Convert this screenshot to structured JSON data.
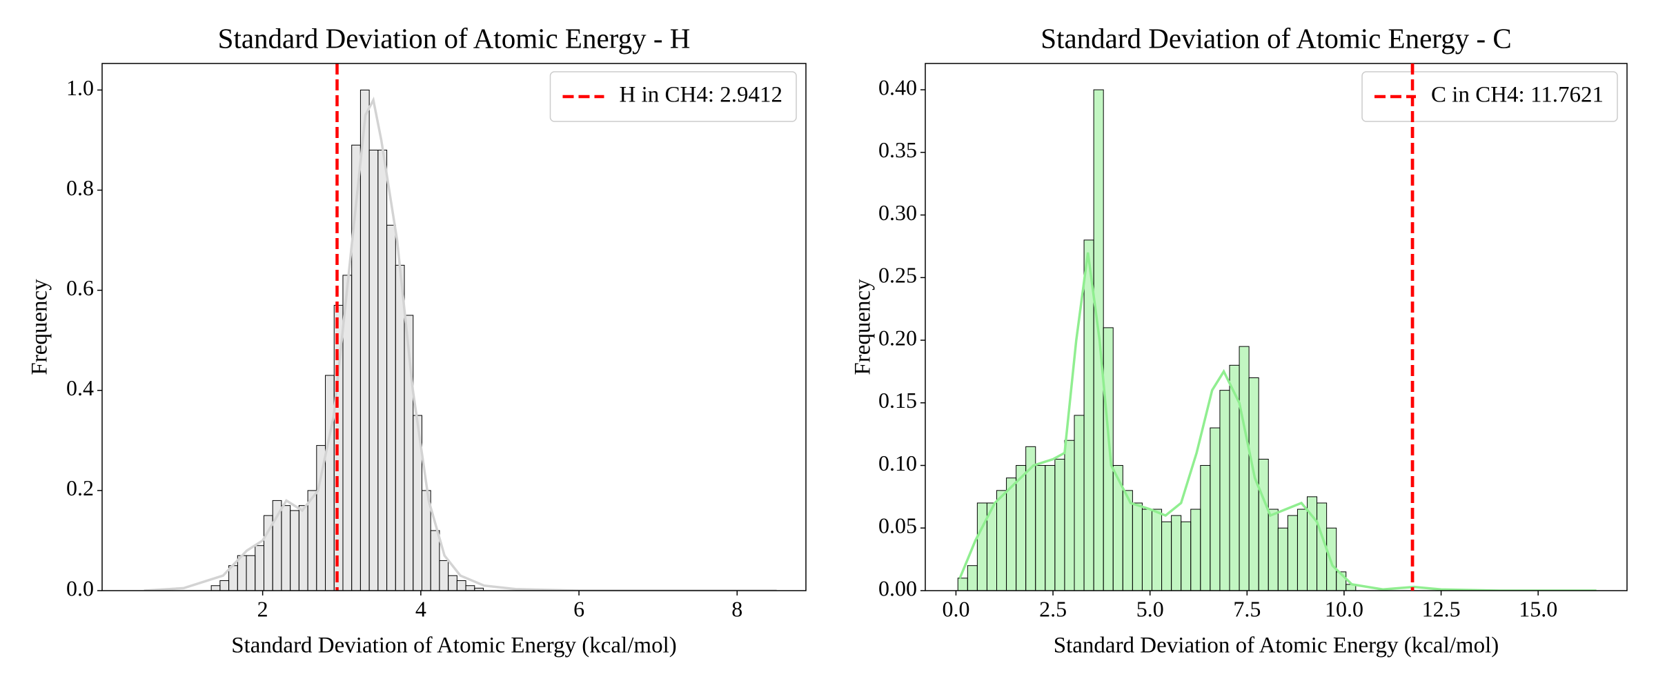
{
  "chart_data": [
    {
      "type": "histogram",
      "title": "Standard Deviation of Atomic Energy - H",
      "xlabel": "Standard Deviation of Atomic Energy (kcal/mol)",
      "ylabel": "Frequency",
      "bins": [
        1.35,
        1.461,
        1.572,
        1.683,
        1.794,
        1.905,
        2.016,
        2.127,
        2.238,
        2.349,
        2.46,
        2.571,
        2.682,
        2.793,
        2.904,
        3.015,
        3.126,
        3.237,
        3.348,
        3.459,
        3.57,
        3.681,
        3.792,
        3.903,
        4.014,
        4.125,
        4.236,
        4.347,
        4.458,
        4.569,
        4.68,
        4.791
      ],
      "values": [
        0.01,
        0.02,
        0.05,
        0.07,
        0.07,
        0.09,
        0.15,
        0.18,
        0.17,
        0.16,
        0.17,
        0.2,
        0.29,
        0.43,
        0.57,
        0.63,
        0.89,
        1.0,
        0.88,
        0.88,
        0.73,
        0.65,
        0.55,
        0.35,
        0.2,
        0.12,
        0.06,
        0.03,
        0.02,
        0.01,
        0.005
      ],
      "color": "#d3d3d3",
      "kde": {
        "x": [
          0.5,
          1.0,
          1.5,
          1.8,
          2.0,
          2.3,
          2.5,
          2.7,
          2.9,
          3.1,
          3.3,
          3.4,
          3.5,
          3.7,
          3.9,
          4.1,
          4.3,
          4.5,
          4.8,
          5.2,
          6.0,
          8.5
        ],
        "values": [
          0,
          0.005,
          0.03,
          0.08,
          0.1,
          0.18,
          0.16,
          0.2,
          0.35,
          0.65,
          0.95,
          0.98,
          0.9,
          0.7,
          0.4,
          0.18,
          0.07,
          0.03,
          0.01,
          0.003,
          0,
          0
        ]
      },
      "vline": {
        "x": 2.9412,
        "label": "H in CH4: 2.9412",
        "color": "#ff0000"
      },
      "legend": "upper right",
      "xlim": [
        -0.03,
        8.87
      ],
      "ylim": [
        0,
        1.053
      ],
      "xticks": [
        2,
        4,
        6,
        8
      ],
      "yticks": [
        {
          "value": 0,
          "label": "0.0"
        },
        0.2,
        0.4,
        0.6,
        0.8,
        {
          "value": 1,
          "label": "1.0"
        }
      ]
    },
    {
      "type": "histogram",
      "title": "Standard Deviation of Atomic Energy - C",
      "xlabel": "Standard Deviation of Atomic Energy (kcal/mol)",
      "ylabel": "Frequency",
      "bins": [
        0.05,
        0.3,
        0.55,
        0.8,
        1.05,
        1.3,
        1.55,
        1.8,
        2.05,
        2.3,
        2.55,
        2.8,
        3.05,
        3.3,
        3.55,
        3.8,
        4.05,
        4.3,
        4.55,
        4.8,
        5.05,
        5.3,
        5.55,
        5.8,
        6.05,
        6.3,
        6.55,
        6.8,
        7.05,
        7.3,
        7.55,
        7.8,
        8.05,
        8.3,
        8.55,
        8.8,
        9.05,
        9.3,
        9.55,
        9.8,
        10.05,
        10.3
      ],
      "values": [
        0.01,
        0.02,
        0.07,
        0.07,
        0.08,
        0.09,
        0.1,
        0.115,
        0.1,
        0.1,
        0.105,
        0.12,
        0.14,
        0.28,
        0.4,
        0.21,
        0.1,
        0.08,
        0.07,
        0.065,
        0.065,
        0.055,
        0.06,
        0.055,
        0.065,
        0.1,
        0.13,
        0.16,
        0.18,
        0.195,
        0.17,
        0.105,
        0.065,
        0.05,
        0.06,
        0.065,
        0.075,
        0.07,
        0.05,
        0.015,
        0.005
      ],
      "color": "#90ee90",
      "kde": {
        "x": [
          0.1,
          0.5,
          1.0,
          1.5,
          2.0,
          2.5,
          2.8,
          3.1,
          3.4,
          3.7,
          4.0,
          4.5,
          5.0,
          5.4,
          5.8,
          6.2,
          6.6,
          6.9,
          7.3,
          7.7,
          8.1,
          8.5,
          8.9,
          9.3,
          9.7,
          10.2,
          11.0,
          11.8,
          12.5,
          14.0,
          16.5
        ],
        "values": [
          0.01,
          0.04,
          0.07,
          0.085,
          0.1,
          0.105,
          0.11,
          0.2,
          0.27,
          0.2,
          0.1,
          0.07,
          0.065,
          0.06,
          0.07,
          0.11,
          0.16,
          0.175,
          0.15,
          0.09,
          0.06,
          0.065,
          0.07,
          0.055,
          0.02,
          0.005,
          0.001,
          0.003,
          0.001,
          0,
          0
        ]
      },
      "vline": {
        "x": 11.7621,
        "label": "C in CH4: 11.7621",
        "color": "#ff0000"
      },
      "legend": "upper right",
      "xlim": [
        -0.79,
        17.29
      ],
      "ylim": [
        0,
        0.421
      ],
      "xticks": [
        {
          "value": 0,
          "label": "0.0"
        },
        2.5,
        {
          "value": 5,
          "label": "5.0"
        },
        7.5,
        {
          "value": 10,
          "label": "10.0"
        },
        12.5,
        {
          "value": 15,
          "label": "15.0"
        }
      ],
      "yticks": [
        {
          "value": 0,
          "label": "0.00"
        },
        0.05,
        {
          "value": 0.1,
          "label": "0.10"
        },
        0.15,
        {
          "value": 0.2,
          "label": "0.20"
        },
        0.25,
        {
          "value": 0.3,
          "label": "0.30"
        },
        0.35,
        {
          "value": 0.4,
          "label": "0.40"
        }
      ]
    }
  ]
}
